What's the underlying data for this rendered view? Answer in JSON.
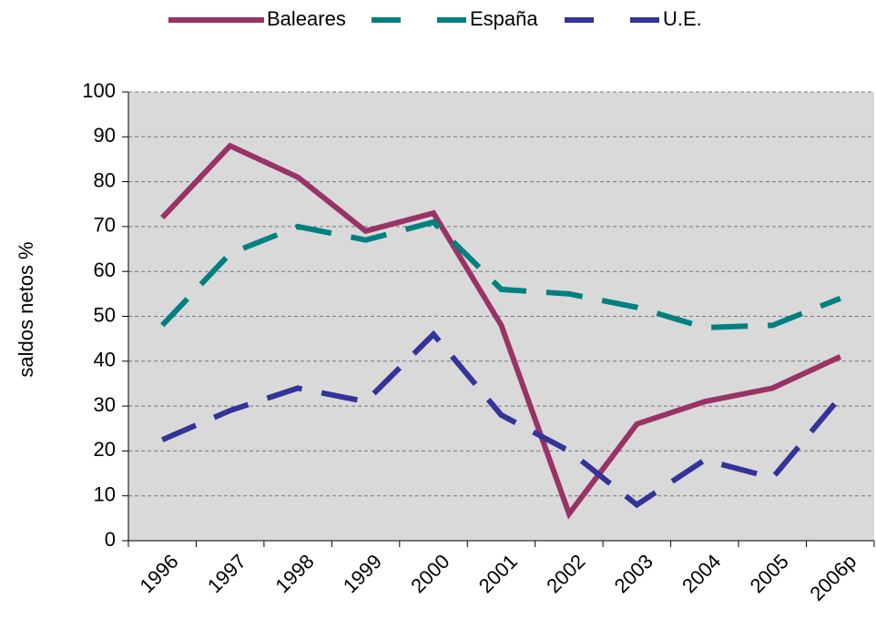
{
  "chart_data": {
    "type": "line",
    "y_label": "saldos netos %",
    "categories": [
      "1996",
      "1997",
      "1998",
      "1999",
      "2000",
      "2001",
      "2002",
      "2003",
      "2004",
      "2005",
      "2006p"
    ],
    "series": [
      {
        "name": "Baleares",
        "color": "#993366",
        "line_style": "solid",
        "values": [
          72,
          88,
          81,
          69,
          73,
          48,
          6,
          26,
          31,
          34,
          41
        ]
      },
      {
        "name": "España",
        "color": "#008080",
        "line_style": "dashed",
        "values": [
          48,
          64,
          70,
          67,
          71,
          56,
          55,
          52,
          47.5,
          48,
          54
        ]
      },
      {
        "name": "U.E.",
        "color": "#333399",
        "line_style": "dashed",
        "values": [
          22.5,
          29,
          34,
          31,
          46,
          28,
          20,
          8,
          18,
          14,
          32
        ]
      }
    ],
    "ylim": [
      0,
      100
    ],
    "yticks": [
      0,
      10,
      20,
      30,
      40,
      50,
      60,
      70,
      80,
      90,
      100
    ],
    "grid": true,
    "legend": "top"
  }
}
